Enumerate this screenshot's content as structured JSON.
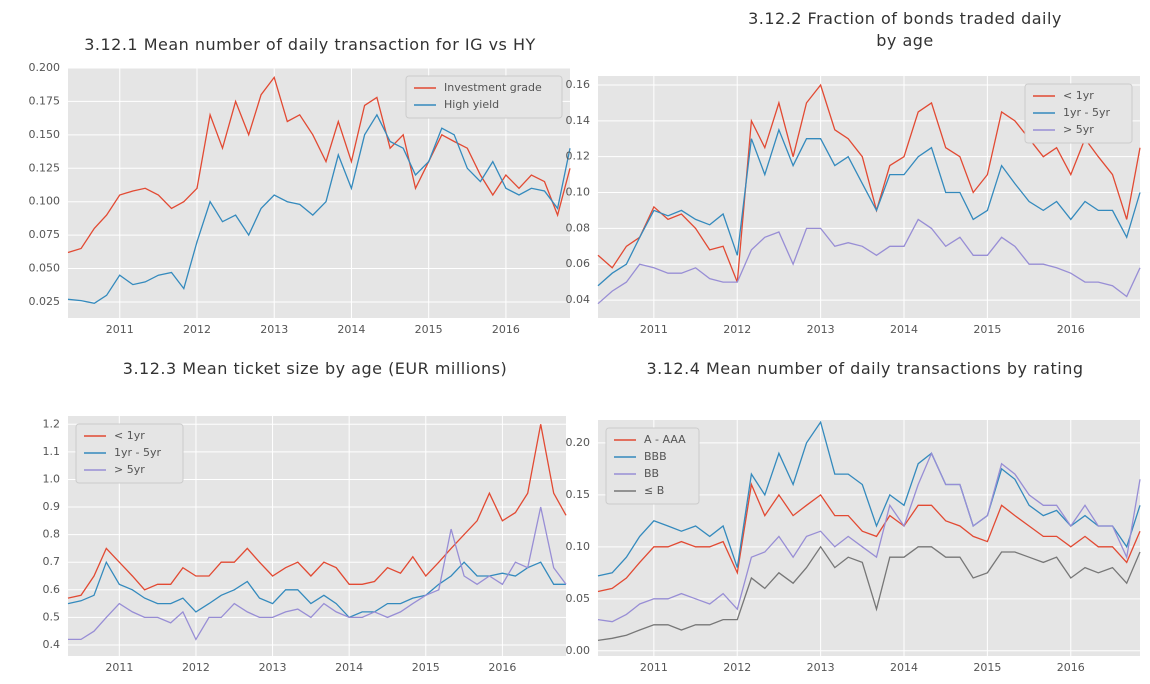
{
  "chart_data": [
    {
      "type": "line",
      "title": "3.12.1 Mean number of daily transaction for IG vs HY",
      "x": [
        2010.33,
        2010.5,
        2010.67,
        2010.83,
        2011,
        2011.17,
        2011.33,
        2011.5,
        2011.67,
        2011.83,
        2012,
        2012.17,
        2012.33,
        2012.5,
        2012.67,
        2012.83,
        2013,
        2013.17,
        2013.33,
        2013.5,
        2013.67,
        2013.83,
        2014,
        2014.17,
        2014.33,
        2014.5,
        2014.67,
        2014.83,
        2015,
        2015.17,
        2015.33,
        2015.5,
        2015.67,
        2015.83,
        2016,
        2016.17,
        2016.33,
        2016.5,
        2016.67,
        2016.83
      ],
      "xlim": [
        2010.33,
        2016.83
      ],
      "xticks": [
        2011,
        2012,
        2013,
        2014,
        2015,
        2016
      ],
      "ylim": [
        0.013,
        0.2
      ],
      "yticks": [
        0.025,
        {
          "value": 0.05,
          "label": "0.050"
        },
        0.075,
        {
          "value": 0.1,
          "label": "0.100"
        },
        0.125,
        {
          "value": 0.15,
          "label": "0.150"
        },
        0.175,
        {
          "value": 0.2,
          "label": "0.200"
        }
      ],
      "grid": true,
      "legend": "upper right",
      "series": [
        {
          "name": "Investment grade",
          "color": "#e24a33",
          "values": [
            0.062,
            0.065,
            0.08,
            0.09,
            0.105,
            0.108,
            0.11,
            0.105,
            0.095,
            0.1,
            0.11,
            0.165,
            0.14,
            0.175,
            0.15,
            0.18,
            0.193,
            0.16,
            0.165,
            0.15,
            0.13,
            0.16,
            0.13,
            0.172,
            0.178,
            0.14,
            0.15,
            0.11,
            0.13,
            0.15,
            0.145,
            0.14,
            0.12,
            0.105,
            0.12,
            0.11,
            0.12,
            0.115,
            0.09,
            0.125
          ]
        },
        {
          "name": "High yield",
          "color": "#348abd",
          "values": [
            0.027,
            0.026,
            0.024,
            0.03,
            0.045,
            0.038,
            0.04,
            0.045,
            0.047,
            0.035,
            0.07,
            0.1,
            0.085,
            0.09,
            0.075,
            0.095,
            0.105,
            0.1,
            0.098,
            0.09,
            0.1,
            0.135,
            0.11,
            0.15,
            0.165,
            0.145,
            0.14,
            0.12,
            0.13,
            0.155,
            0.15,
            0.125,
            0.115,
            0.13,
            0.11,
            0.105,
            0.11,
            0.108,
            0.095,
            0.14
          ]
        }
      ]
    },
    {
      "type": "line",
      "title": "3.12.2 Fraction of bonds traded daily by age",
      "x": [
        2010.33,
        2010.5,
        2010.67,
        2010.83,
        2011,
        2011.17,
        2011.33,
        2011.5,
        2011.67,
        2011.83,
        2012,
        2012.17,
        2012.33,
        2012.5,
        2012.67,
        2012.83,
        2013,
        2013.17,
        2013.33,
        2013.5,
        2013.67,
        2013.83,
        2014,
        2014.17,
        2014.33,
        2014.5,
        2014.67,
        2014.83,
        2015,
        2015.17,
        2015.33,
        2015.5,
        2015.67,
        2015.83,
        2016,
        2016.17,
        2016.33,
        2016.5,
        2016.67,
        2016.83
      ],
      "xlim": [
        2010.33,
        2016.83
      ],
      "xticks": [
        2011,
        2012,
        2013,
        2014,
        2015,
        2016
      ],
      "ylim": [
        0.03,
        0.165
      ],
      "yticks": [
        0.04,
        0.06,
        0.08,
        {
          "value": 0.1,
          "label": "0.10"
        },
        0.12,
        0.14,
        0.16
      ],
      "grid": true,
      "legend": "upper right",
      "series": [
        {
          "name": "< 1yr",
          "color": "#e24a33",
          "values": [
            0.065,
            0.058,
            0.07,
            0.075,
            0.092,
            0.085,
            0.088,
            0.08,
            0.068,
            0.07,
            0.05,
            0.14,
            0.125,
            0.15,
            0.12,
            0.15,
            0.16,
            0.135,
            0.13,
            0.12,
            0.09,
            0.115,
            0.12,
            0.145,
            0.15,
            0.125,
            0.12,
            0.1,
            0.11,
            0.145,
            0.14,
            0.13,
            0.12,
            0.125,
            0.11,
            0.13,
            0.12,
            0.11,
            0.085,
            0.125
          ]
        },
        {
          "name": "1yr - 5yr",
          "color": "#348abd",
          "values": [
            0.048,
            0.055,
            0.06,
            0.075,
            0.09,
            0.087,
            0.09,
            0.085,
            0.082,
            0.088,
            0.065,
            0.13,
            0.11,
            0.135,
            0.115,
            0.13,
            0.13,
            0.115,
            0.12,
            0.105,
            0.09,
            0.11,
            0.11,
            0.12,
            0.125,
            0.1,
            0.1,
            0.085,
            0.09,
            0.115,
            0.105,
            0.095,
            0.09,
            0.095,
            0.085,
            0.095,
            0.09,
            0.09,
            0.075,
            0.1
          ]
        },
        {
          "name": "> 5yr",
          "color": "#988ed5",
          "values": [
            0.038,
            0.045,
            0.05,
            0.06,
            0.058,
            0.055,
            0.055,
            0.058,
            0.052,
            0.05,
            0.05,
            0.068,
            0.075,
            0.078,
            0.06,
            0.08,
            0.08,
            0.07,
            0.072,
            0.07,
            0.065,
            0.07,
            0.07,
            0.085,
            0.08,
            0.07,
            0.075,
            0.065,
            0.065,
            0.075,
            0.07,
            0.06,
            0.06,
            0.058,
            0.055,
            0.05,
            0.05,
            0.048,
            0.042,
            0.058
          ]
        }
      ]
    },
    {
      "type": "line",
      "title": "3.12.3 Mean ticket size by age (EUR millions)",
      "x": [
        2010.33,
        2010.5,
        2010.67,
        2010.83,
        2011,
        2011.17,
        2011.33,
        2011.5,
        2011.67,
        2011.83,
        2012,
        2012.17,
        2012.33,
        2012.5,
        2012.67,
        2012.83,
        2013,
        2013.17,
        2013.33,
        2013.5,
        2013.67,
        2013.83,
        2014,
        2014.17,
        2014.33,
        2014.5,
        2014.67,
        2014.83,
        2015,
        2015.17,
        2015.33,
        2015.5,
        2015.67,
        2015.83,
        2016,
        2016.17,
        2016.33,
        2016.5,
        2016.67,
        2016.83
      ],
      "xlim": [
        2010.33,
        2016.83
      ],
      "xticks": [
        2011,
        2012,
        2013,
        2014,
        2015,
        2016
      ],
      "ylim": [
        0.36,
        1.23
      ],
      "yticks": [
        0.4,
        0.5,
        0.6,
        0.7,
        0.8,
        0.9,
        {
          "value": 1,
          "label": "1.0"
        },
        1.1,
        1.2
      ],
      "grid": true,
      "legend": "upper left",
      "series": [
        {
          "name": "< 1yr",
          "color": "#e24a33",
          "values": [
            0.57,
            0.58,
            0.65,
            0.75,
            0.7,
            0.65,
            0.6,
            0.62,
            0.62,
            0.68,
            0.65,
            0.65,
            0.7,
            0.7,
            0.75,
            0.7,
            0.65,
            0.68,
            0.7,
            0.65,
            0.7,
            0.68,
            0.62,
            0.62,
            0.63,
            0.68,
            0.66,
            0.72,
            0.65,
            0.7,
            0.75,
            0.8,
            0.85,
            0.95,
            0.85,
            0.88,
            0.95,
            1.2,
            0.95,
            0.87
          ]
        },
        {
          "name": "1yr - 5yr",
          "color": "#348abd",
          "values": [
            0.55,
            0.56,
            0.58,
            0.7,
            0.62,
            0.6,
            0.57,
            0.55,
            0.55,
            0.57,
            0.52,
            0.55,
            0.58,
            0.6,
            0.63,
            0.57,
            0.55,
            0.6,
            0.6,
            0.55,
            0.58,
            0.55,
            0.5,
            0.52,
            0.52,
            0.55,
            0.55,
            0.57,
            0.58,
            0.62,
            0.65,
            0.7,
            0.65,
            0.65,
            0.66,
            0.65,
            0.68,
            0.7,
            0.62,
            0.62
          ]
        },
        {
          "name": "> 5yr",
          "color": "#988ed5",
          "values": [
            0.42,
            0.42,
            0.45,
            0.5,
            0.55,
            0.52,
            0.5,
            0.5,
            0.48,
            0.52,
            0.42,
            0.5,
            0.5,
            0.55,
            0.52,
            0.5,
            0.5,
            0.52,
            0.53,
            0.5,
            0.55,
            0.52,
            0.5,
            0.5,
            0.52,
            0.5,
            0.52,
            0.55,
            0.58,
            0.6,
            0.82,
            0.65,
            0.62,
            0.65,
            0.62,
            0.7,
            0.68,
            0.9,
            0.68,
            0.62
          ]
        }
      ]
    },
    {
      "type": "line",
      "title": "3.12.4  Mean number of daily transactions by rating",
      "x": [
        2010.33,
        2010.5,
        2010.67,
        2010.83,
        2011,
        2011.17,
        2011.33,
        2011.5,
        2011.67,
        2011.83,
        2012,
        2012.17,
        2012.33,
        2012.5,
        2012.67,
        2012.83,
        2013,
        2013.17,
        2013.33,
        2013.5,
        2013.67,
        2013.83,
        2014,
        2014.17,
        2014.33,
        2014.5,
        2014.67,
        2014.83,
        2015,
        2015.17,
        2015.33,
        2015.5,
        2015.67,
        2015.83,
        2016,
        2016.17,
        2016.33,
        2016.5,
        2016.67,
        2016.83
      ],
      "xlim": [
        2010.33,
        2016.83
      ],
      "xticks": [
        2011,
        2012,
        2013,
        2014,
        2015,
        2016
      ],
      "ylim": [
        -0.005,
        0.222
      ],
      "yticks": [
        {
          "value": 0,
          "label": "0.00"
        },
        0.05,
        {
          "value": 0.1,
          "label": "0.10"
        },
        0.15,
        {
          "value": 0.2,
          "label": "0.20"
        }
      ],
      "grid": true,
      "legend": "upper left",
      "series": [
        {
          "name": "A - AAA",
          "color": "#e24a33",
          "values": [
            0.057,
            0.06,
            0.07,
            0.085,
            0.1,
            0.1,
            0.105,
            0.1,
            0.1,
            0.105,
            0.075,
            0.16,
            0.13,
            0.15,
            0.13,
            0.14,
            0.15,
            0.13,
            0.13,
            0.115,
            0.11,
            0.13,
            0.12,
            0.14,
            0.14,
            0.125,
            0.12,
            0.11,
            0.105,
            0.14,
            0.13,
            0.12,
            0.11,
            0.11,
            0.1,
            0.11,
            0.1,
            0.1,
            0.085,
            0.115
          ]
        },
        {
          "name": "BBB",
          "color": "#348abd",
          "values": [
            0.072,
            0.075,
            0.09,
            0.11,
            0.125,
            0.12,
            0.115,
            0.12,
            0.11,
            0.12,
            0.08,
            0.17,
            0.15,
            0.19,
            0.16,
            0.2,
            0.22,
            0.17,
            0.17,
            0.16,
            0.12,
            0.15,
            0.14,
            0.18,
            0.19,
            0.16,
            0.16,
            0.12,
            0.13,
            0.175,
            0.165,
            0.14,
            0.13,
            0.135,
            0.12,
            0.13,
            0.12,
            0.12,
            0.1,
            0.14
          ]
        },
        {
          "name": "BB",
          "color": "#988ed5",
          "values": [
            0.03,
            0.028,
            0.035,
            0.045,
            0.05,
            0.05,
            0.055,
            0.05,
            0.045,
            0.055,
            0.04,
            0.09,
            0.095,
            0.11,
            0.09,
            0.11,
            0.115,
            0.1,
            0.11,
            0.1,
            0.09,
            0.14,
            0.12,
            0.16,
            0.19,
            0.16,
            0.16,
            0.12,
            0.13,
            0.18,
            0.17,
            0.15,
            0.14,
            0.14,
            0.12,
            0.14,
            0.12,
            0.12,
            0.09,
            0.165
          ]
        },
        {
          "name": "≤ B",
          "color": "#777777",
          "values": [
            0.01,
            0.012,
            0.015,
            0.02,
            0.025,
            0.025,
            0.02,
            0.025,
            0.025,
            0.03,
            0.03,
            0.07,
            0.06,
            0.075,
            0.065,
            0.08,
            0.1,
            0.08,
            0.09,
            0.085,
            0.04,
            0.09,
            0.09,
            0.1,
            0.1,
            0.09,
            0.09,
            0.07,
            0.075,
            0.095,
            0.095,
            0.09,
            0.085,
            0.09,
            0.07,
            0.08,
            0.075,
            0.08,
            0.065,
            0.095
          ]
        }
      ]
    }
  ]
}
